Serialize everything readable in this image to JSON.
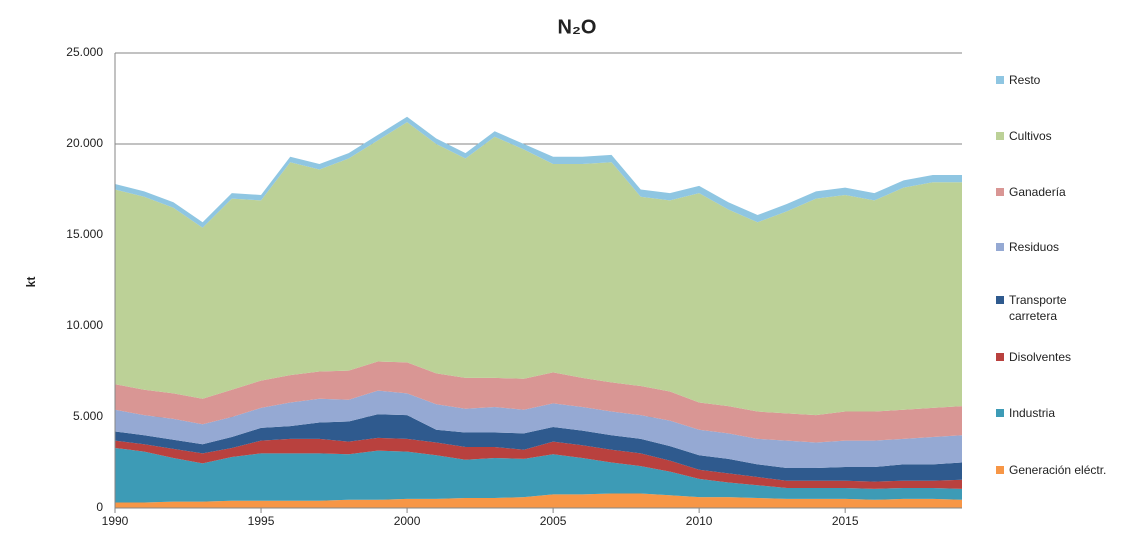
{
  "chart_data": {
    "type": "stacked_area",
    "title": "N₂O",
    "y_label": "kt",
    "x": [
      1990,
      1991,
      1992,
      1993,
      1994,
      1995,
      1996,
      1997,
      1998,
      1999,
      2000,
      2001,
      2002,
      2003,
      2004,
      2005,
      2006,
      2007,
      2008,
      2009,
      2010,
      2011,
      2012,
      2013,
      2014,
      2015,
      2016,
      2017,
      2018,
      2019
    ],
    "xlim": [
      1990,
      2019
    ],
    "xticks": [
      1990,
      1995,
      2000,
      2005,
      2010,
      2015
    ],
    "ylim": [
      0,
      25000
    ],
    "yticks": [
      0,
      {
        "value": 5000,
        "label": "5.000"
      },
      {
        "value": 10000,
        "label": "10.000"
      },
      {
        "value": 15000,
        "label": "15.000"
      },
      {
        "value": 20000,
        "label": "20.000"
      },
      {
        "value": 25000,
        "label": "25.000"
      }
    ],
    "grid": true,
    "series": [
      {
        "name": "Generación eléctr.",
        "color": "#f79646",
        "values": [
          300,
          300,
          350,
          350,
          400,
          400,
          400,
          400,
          450,
          450,
          500,
          500,
          550,
          550,
          600,
          750,
          750,
          800,
          800,
          700,
          600,
          600,
          550,
          500,
          500,
          500,
          450,
          500,
          500,
          450
        ]
      },
      {
        "name": "Industria",
        "color": "#3d9bb6",
        "values": [
          3000,
          2800,
          2400,
          2100,
          2400,
          2600,
          2600,
          2600,
          2500,
          2700,
          2600,
          2400,
          2100,
          2200,
          2100,
          2200,
          2000,
          1700,
          1500,
          1300,
          1000,
          800,
          700,
          600,
          600,
          600,
          600,
          600,
          600,
          600
        ]
      },
      {
        "name": "Disolventes",
        "color": "#b9413e",
        "values": [
          400,
          400,
          500,
          550,
          500,
          700,
          800,
          800,
          700,
          700,
          700,
          700,
          700,
          600,
          500,
          700,
          700,
          700,
          700,
          600,
          500,
          500,
          450,
          400,
          400,
          400,
          400,
          400,
          400,
          500
        ]
      },
      {
        "name": "Transporte carretera",
        "color": "#2f5a8e",
        "values": [
          500,
          500,
          500,
          500,
          600,
          700,
          700,
          900,
          1100,
          1300,
          1300,
          700,
          800,
          800,
          900,
          800,
          800,
          800,
          800,
          800,
          800,
          800,
          700,
          700,
          700,
          750,
          800,
          900,
          900,
          950
        ]
      },
      {
        "name": "Residuos",
        "color": "#95a9d3",
        "values": [
          1200,
          1100,
          1150,
          1100,
          1100,
          1100,
          1300,
          1300,
          1200,
          1300,
          1200,
          1400,
          1300,
          1400,
          1300,
          1300,
          1300,
          1300,
          1300,
          1400,
          1400,
          1400,
          1400,
          1500,
          1400,
          1450,
          1450,
          1400,
          1500,
          1500
        ]
      },
      {
        "name": "Ganadería",
        "color": "#d99694",
        "values": [
          1400,
          1400,
          1400,
          1400,
          1500,
          1500,
          1500,
          1500,
          1600,
          1600,
          1700,
          1700,
          1700,
          1600,
          1700,
          1700,
          1600,
          1600,
          1600,
          1600,
          1500,
          1500,
          1500,
          1500,
          1500,
          1600,
          1600,
          1600,
          1600,
          1600
        ]
      },
      {
        "name": "Cultivos",
        "color": "#bcd197",
        "values": [
          10700,
          10600,
          10200,
          9400,
          10500,
          9900,
          11700,
          11100,
          11650,
          12150,
          13200,
          12600,
          12050,
          13250,
          12600,
          11450,
          11750,
          12100,
          10400,
          10500,
          11500,
          10800,
          10400,
          11100,
          11900,
          11900,
          11600,
          12200,
          12400,
          12300
        ]
      },
      {
        "name": "Resto",
        "color": "#8fc6e2",
        "values": [
          300,
          300,
          300,
          300,
          300,
          300,
          300,
          300,
          300,
          300,
          300,
          300,
          300,
          300,
          300,
          400,
          400,
          400,
          400,
          400,
          400,
          400,
          400,
          400,
          400,
          400,
          400,
          400,
          400,
          400
        ]
      }
    ]
  }
}
